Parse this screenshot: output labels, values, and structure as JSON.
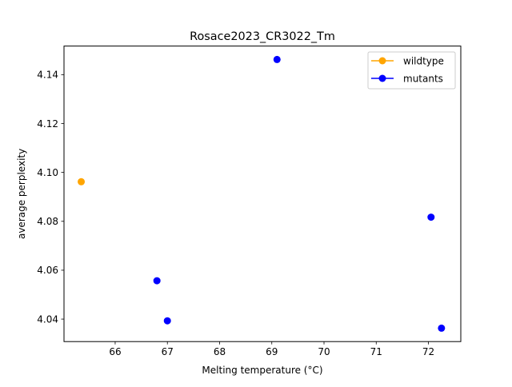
{
  "chart_data": {
    "type": "scatter",
    "title": "Rosace2023_CR3022_Tm",
    "xlabel": "Melting temperature (°C)",
    "ylabel": "average perplexity",
    "xlim": [
      65.02,
      72.62
    ],
    "ylim": [
      4.0308,
      4.1517
    ],
    "xticks": [
      66,
      67,
      68,
      69,
      70,
      71,
      72
    ],
    "yticks": [
      4.04,
      4.06,
      4.08,
      4.1,
      4.12,
      4.14
    ],
    "xtick_labels": [
      "66",
      "67",
      "68",
      "69",
      "70",
      "71",
      "72"
    ],
    "ytick_labels": [
      "4.04",
      "4.06",
      "4.08",
      "4.10",
      "4.12",
      "4.14"
    ],
    "grid": false,
    "legend_position": "upper-right",
    "series": [
      {
        "name": "wildtype",
        "color": "#ffa500",
        "marker": "circle",
        "points": [
          {
            "x": 65.35,
            "y": 4.0962
          }
        ]
      },
      {
        "name": "mutants",
        "color": "#0000ff",
        "marker": "circle",
        "points": [
          {
            "x": 69.1,
            "y": 4.1462
          },
          {
            "x": 72.05,
            "y": 4.0817
          },
          {
            "x": 66.8,
            "y": 4.0557
          },
          {
            "x": 67.0,
            "y": 4.0393
          },
          {
            "x": 72.25,
            "y": 4.0363
          }
        ]
      }
    ]
  }
}
